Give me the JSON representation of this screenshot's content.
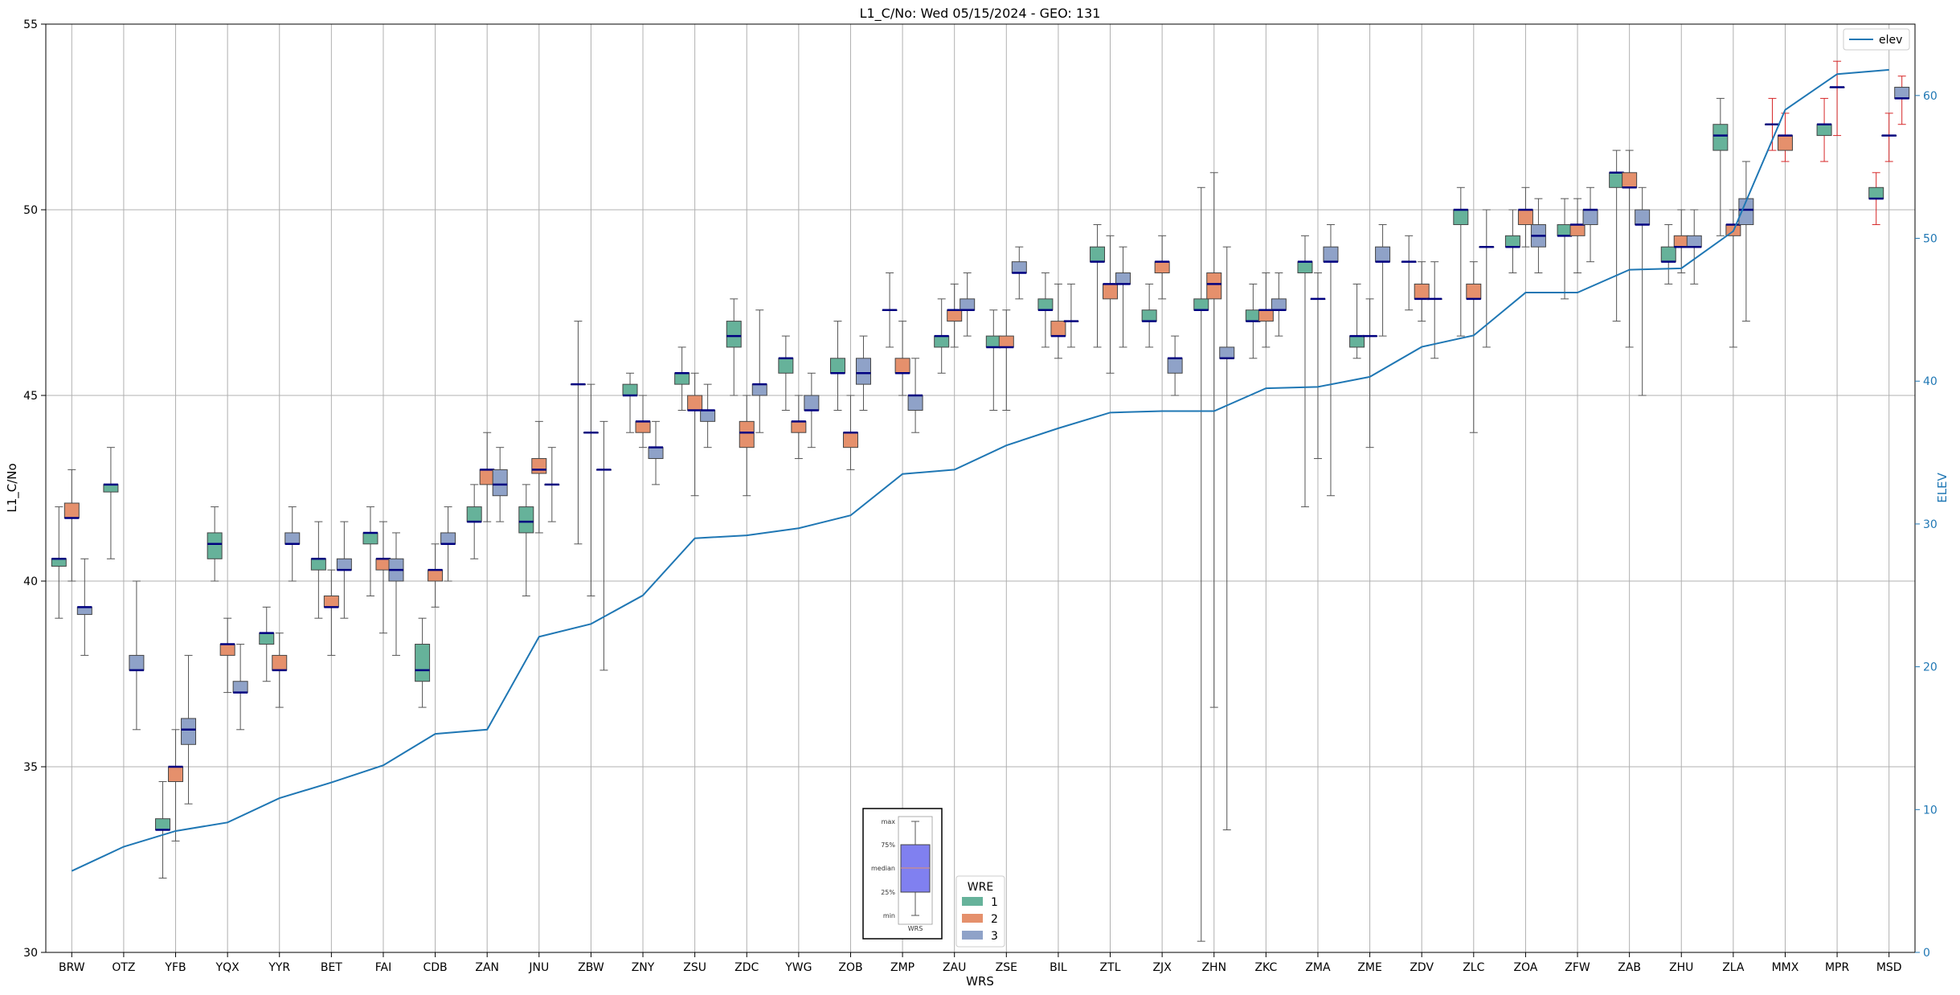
{
  "chart_data": {
    "type": "boxplot",
    "title": "L1_C/No: Wed 05/15/2024 - GEO: 131",
    "xlabel": "WRS",
    "ylabel": "L1_C/No",
    "y2label": "ELEV",
    "ylim": [
      30,
      55
    ],
    "y2lim": [
      0,
      65
    ],
    "yticks": [
      30,
      35,
      40,
      45,
      50,
      55
    ],
    "y2ticks": [
      0,
      10,
      20,
      30,
      40,
      50,
      60
    ],
    "grid": true,
    "categories": [
      "BRW",
      "OTZ",
      "YFB",
      "YQX",
      "YYR",
      "BET",
      "FAI",
      "CDB",
      "ZAN",
      "JNU",
      "ZBW",
      "ZNY",
      "ZSU",
      "ZDC",
      "YWG",
      "ZOB",
      "ZMP",
      "ZAU",
      "ZSE",
      "BIL",
      "ZTL",
      "ZJX",
      "ZHN",
      "ZKC",
      "ZMA",
      "ZME",
      "ZDV",
      "ZLC",
      "ZOA",
      "ZFW",
      "ZAB",
      "ZHU",
      "ZLA",
      "MMX",
      "MPR",
      "MSD"
    ],
    "elev_line": {
      "name": "elev",
      "color": "#1f77b4",
      "values": [
        5.7,
        7.4,
        8.5,
        9.1,
        10.8,
        11.9,
        13.1,
        15.3,
        15.6,
        22.1,
        23.0,
        25.0,
        29.0,
        29.2,
        29.7,
        30.6,
        33.5,
        33.8,
        35.5,
        36.7,
        37.8,
        37.9,
        37.9,
        39.5,
        39.6,
        40.3,
        42.4,
        43.2,
        46.2,
        46.2,
        47.8,
        47.9,
        50.5,
        59.0,
        61.5,
        61.8
      ]
    },
    "legend": {
      "title": "WRE",
      "entries": [
        {
          "name": "1",
          "color": "#66b29a"
        },
        {
          "name": "2",
          "color": "#e5906c"
        },
        {
          "name": "3",
          "color": "#8fa2c8"
        }
      ],
      "line_entry": "elev",
      "line_legend_position": "top-right",
      "wre_legend_position": "bottom-center"
    },
    "key": {
      "labels": [
        "max",
        "75%",
        "median",
        "25%",
        "min"
      ],
      "xlabel": "WRS",
      "color": "#8080f0"
    },
    "boxes": [
      {
        "site": "BRW",
        "wre": 1,
        "min": 39,
        "q1": 40.4,
        "median": 40.6,
        "q3": 40.6,
        "max": 42
      },
      {
        "site": "BRW",
        "wre": 2,
        "min": 40,
        "q1": 41.7,
        "median": 41.7,
        "q3": 42.1,
        "max": 43
      },
      {
        "site": "BRW",
        "wre": 3,
        "min": 38,
        "q1": 39.1,
        "median": 39.3,
        "q3": 39.3,
        "max": 40.6
      },
      {
        "site": "OTZ",
        "wre": 1,
        "min": 40.6,
        "q1": 42.4,
        "median": 42.6,
        "q3": 42.6,
        "max": 43.6
      },
      {
        "site": "OTZ",
        "wre": 3,
        "min": 36,
        "q1": 37.6,
        "median": 37.6,
        "q3": 38,
        "max": 40
      },
      {
        "site": "YFB",
        "wre": 1,
        "min": 32,
        "q1": 33.3,
        "median": 33.3,
        "q3": 33.6,
        "max": 34.6
      },
      {
        "site": "YFB",
        "wre": 2,
        "min": 33,
        "q1": 34.6,
        "median": 35,
        "q3": 35,
        "max": 36
      },
      {
        "site": "YFB",
        "wre": 3,
        "min": 34,
        "q1": 35.6,
        "median": 36,
        "q3": 36.3,
        "max": 38
      },
      {
        "site": "YQX",
        "wre": 1,
        "min": 40,
        "q1": 40.6,
        "median": 41,
        "q3": 41.3,
        "max": 42
      },
      {
        "site": "YQX",
        "wre": 2,
        "min": 37,
        "q1": 38,
        "median": 38.3,
        "q3": 38.3,
        "max": 39
      },
      {
        "site": "YQX",
        "wre": 3,
        "min": 36,
        "q1": 37,
        "median": 37,
        "q3": 37.3,
        "max": 38.3
      },
      {
        "site": "YYR",
        "wre": 1,
        "min": 37.3,
        "q1": 38.3,
        "median": 38.6,
        "q3": 38.6,
        "max": 39.3
      },
      {
        "site": "YYR",
        "wre": 2,
        "min": 36.6,
        "q1": 37.6,
        "median": 37.6,
        "q3": 38,
        "max": 38.6
      },
      {
        "site": "YYR",
        "wre": 3,
        "min": 40,
        "q1": 41,
        "median": 41,
        "q3": 41.3,
        "max": 42
      },
      {
        "site": "BET",
        "wre": 1,
        "min": 39,
        "q1": 40.3,
        "median": 40.6,
        "q3": 40.6,
        "max": 41.6
      },
      {
        "site": "BET",
        "wre": 2,
        "min": 38,
        "q1": 39.3,
        "median": 39.3,
        "q3": 39.6,
        "max": 40.3
      },
      {
        "site": "BET",
        "wre": 3,
        "min": 39,
        "q1": 40.3,
        "median": 40.3,
        "q3": 40.6,
        "max": 41.6
      },
      {
        "site": "FAI",
        "wre": 1,
        "min": 39.6,
        "q1": 41,
        "median": 41.3,
        "q3": 41.3,
        "max": 42
      },
      {
        "site": "FAI",
        "wre": 2,
        "min": 38.6,
        "q1": 40.3,
        "median": 40.6,
        "q3": 40.6,
        "max": 41.6
      },
      {
        "site": "FAI",
        "wre": 3,
        "min": 38,
        "q1": 40,
        "median": 40.3,
        "q3": 40.6,
        "max": 41.3
      },
      {
        "site": "CDB",
        "wre": 1,
        "min": 36.6,
        "q1": 37.3,
        "median": 37.6,
        "q3": 38.3,
        "max": 39
      },
      {
        "site": "CDB",
        "wre": 2,
        "min": 39.3,
        "q1": 40,
        "median": 40.3,
        "q3": 40.3,
        "max": 41
      },
      {
        "site": "CDB",
        "wre": 3,
        "min": 40,
        "q1": 41,
        "median": 41,
        "q3": 41.3,
        "max": 42
      },
      {
        "site": "ZAN",
        "wre": 1,
        "min": 40.6,
        "q1": 41.6,
        "median": 41.6,
        "q3": 42,
        "max": 42.6
      },
      {
        "site": "ZAN",
        "wre": 2,
        "min": 41.6,
        "q1": 42.6,
        "median": 43,
        "q3": 43,
        "max": 44
      },
      {
        "site": "ZAN",
        "wre": 3,
        "min": 41.6,
        "q1": 42.3,
        "median": 42.6,
        "q3": 43,
        "max": 43.6
      },
      {
        "site": "JNU",
        "wre": 1,
        "min": 39.6,
        "q1": 41.3,
        "median": 41.6,
        "q3": 42,
        "max": 42.6
      },
      {
        "site": "JNU",
        "wre": 2,
        "min": 41.3,
        "q1": 42.9,
        "median": 43,
        "q3": 43.3,
        "max": 44.3
      },
      {
        "site": "JNU",
        "wre": 3,
        "min": 41.6,
        "q1": 42.6,
        "median": 42.6,
        "q3": 42.6,
        "max": 43.6
      },
      {
        "site": "ZBW",
        "wre": 1,
        "min": 41,
        "q1": 45.3,
        "median": 45.3,
        "q3": 45.3,
        "max": 47
      },
      {
        "site": "ZBW",
        "wre": 2,
        "min": 39.6,
        "q1": 44,
        "median": 44,
        "q3": 44,
        "max": 45.3
      },
      {
        "site": "ZBW",
        "wre": 3,
        "min": 37.6,
        "q1": 43,
        "median": 43,
        "q3": 43,
        "max": 44.3
      },
      {
        "site": "ZNY",
        "wre": 1,
        "min": 44,
        "q1": 45,
        "median": 45,
        "q3": 45.3,
        "max": 45.6
      },
      {
        "site": "ZNY",
        "wre": 2,
        "min": 43.6,
        "q1": 44,
        "median": 44.3,
        "q3": 44.3,
        "max": 45
      },
      {
        "site": "ZNY",
        "wre": 3,
        "min": 42.6,
        "q1": 43.3,
        "median": 43.6,
        "q3": 43.6,
        "max": 44.3
      },
      {
        "site": "ZSU",
        "wre": 1,
        "min": 44.6,
        "q1": 45.3,
        "median": 45.6,
        "q3": 45.6,
        "max": 46.3
      },
      {
        "site": "ZSU",
        "wre": 2,
        "min": 42.3,
        "q1": 44.6,
        "median": 44.6,
        "q3": 45,
        "max": 45.6
      },
      {
        "site": "ZSU",
        "wre": 3,
        "min": 43.6,
        "q1": 44.3,
        "median": 44.6,
        "q3": 44.6,
        "max": 45.3
      },
      {
        "site": "ZDC",
        "wre": 1,
        "min": 45,
        "q1": 46.3,
        "median": 46.6,
        "q3": 47,
        "max": 47.6
      },
      {
        "site": "ZDC",
        "wre": 2,
        "min": 42.3,
        "q1": 43.6,
        "median": 44,
        "q3": 44.3,
        "max": 45
      },
      {
        "site": "ZDC",
        "wre": 3,
        "min": 44,
        "q1": 45,
        "median": 45.3,
        "q3": 45.3,
        "max": 47.3
      },
      {
        "site": "YWG",
        "wre": 1,
        "min": 44.6,
        "q1": 45.6,
        "median": 46,
        "q3": 46,
        "max": 46.6
      },
      {
        "site": "YWG",
        "wre": 2,
        "min": 43.3,
        "q1": 44,
        "median": 44.3,
        "q3": 44.3,
        "max": 45
      },
      {
        "site": "YWG",
        "wre": 3,
        "min": 43.6,
        "q1": 44.6,
        "median": 44.6,
        "q3": 45,
        "max": 45.6
      },
      {
        "site": "ZOB",
        "wre": 1,
        "min": 44.6,
        "q1": 45.6,
        "median": 45.6,
        "q3": 46,
        "max": 47
      },
      {
        "site": "ZOB",
        "wre": 2,
        "min": 43,
        "q1": 43.6,
        "median": 44,
        "q3": 44,
        "max": 45
      },
      {
        "site": "ZOB",
        "wre": 3,
        "min": 44.6,
        "q1": 45.3,
        "median": 45.6,
        "q3": 46,
        "max": 46.6
      },
      {
        "site": "ZMP",
        "wre": 1,
        "min": 46.3,
        "q1": 47.3,
        "median": 47.3,
        "q3": 47.3,
        "max": 48.3
      },
      {
        "site": "ZMP",
        "wre": 2,
        "min": 45,
        "q1": 45.6,
        "median": 45.6,
        "q3": 46,
        "max": 47
      },
      {
        "site": "ZMP",
        "wre": 3,
        "min": 44,
        "q1": 44.6,
        "median": 45,
        "q3": 45,
        "max": 46
      },
      {
        "site": "ZAU",
        "wre": 1,
        "min": 45.6,
        "q1": 46.3,
        "median": 46.6,
        "q3": 46.6,
        "max": 47.6
      },
      {
        "site": "ZAU",
        "wre": 2,
        "min": 46.3,
        "q1": 47,
        "median": 47.3,
        "q3": 47.3,
        "max": 48
      },
      {
        "site": "ZAU",
        "wre": 3,
        "min": 46.6,
        "q1": 47.3,
        "median": 47.3,
        "q3": 47.6,
        "max": 48.3
      },
      {
        "site": "ZSE",
        "wre": 1,
        "min": 44.6,
        "q1": 46.3,
        "median": 46.3,
        "q3": 46.6,
        "max": 47.3
      },
      {
        "site": "ZSE",
        "wre": 2,
        "min": 44.6,
        "q1": 46.3,
        "median": 46.3,
        "q3": 46.6,
        "max": 47.3
      },
      {
        "site": "ZSE",
        "wre": 3,
        "min": 47.6,
        "q1": 48.3,
        "median": 48.3,
        "q3": 48.6,
        "max": 49
      },
      {
        "site": "BIL",
        "wre": 1,
        "min": 46.3,
        "q1": 47.3,
        "median": 47.3,
        "q3": 47.6,
        "max": 48.3
      },
      {
        "site": "BIL",
        "wre": 2,
        "min": 46,
        "q1": 46.6,
        "median": 46.6,
        "q3": 47,
        "max": 48
      },
      {
        "site": "BIL",
        "wre": 3,
        "min": 46.3,
        "q1": 47,
        "median": 47,
        "q3": 47,
        "max": 48
      },
      {
        "site": "ZTL",
        "wre": 1,
        "min": 46.3,
        "q1": 48.6,
        "median": 48.6,
        "q3": 49,
        "max": 49.6
      },
      {
        "site": "ZTL",
        "wre": 2,
        "min": 45.6,
        "q1": 47.6,
        "median": 48,
        "q3": 48,
        "max": 49.3
      },
      {
        "site": "ZTL",
        "wre": 3,
        "min": 46.3,
        "q1": 48,
        "median": 48,
        "q3": 48.3,
        "max": 49
      },
      {
        "site": "ZJX",
        "wre": 1,
        "min": 46.3,
        "q1": 47,
        "median": 47,
        "q3": 47.3,
        "max": 48
      },
      {
        "site": "ZJX",
        "wre": 2,
        "min": 47.6,
        "q1": 48.3,
        "median": 48.6,
        "q3": 48.6,
        "max": 49.3
      },
      {
        "site": "ZJX",
        "wre": 3,
        "min": 45,
        "q1": 45.6,
        "median": 46,
        "q3": 46,
        "max": 46.6
      },
      {
        "site": "ZHN",
        "wre": 1,
        "min": 30.3,
        "q1": 47.3,
        "median": 47.3,
        "q3": 47.6,
        "max": 50.6
      },
      {
        "site": "ZHN",
        "wre": 2,
        "min": 36.6,
        "q1": 47.6,
        "median": 48,
        "q3": 48.3,
        "max": 51
      },
      {
        "site": "ZHN",
        "wre": 3,
        "min": 33.3,
        "q1": 46,
        "median": 46,
        "q3": 46.3,
        "max": 49
      },
      {
        "site": "ZKC",
        "wre": 1,
        "min": 46,
        "q1": 47,
        "median": 47,
        "q3": 47.3,
        "max": 48
      },
      {
        "site": "ZKC",
        "wre": 2,
        "min": 46.3,
        "q1": 47,
        "median": 47.3,
        "q3": 47.3,
        "max": 48.3
      },
      {
        "site": "ZKC",
        "wre": 3,
        "min": 46.6,
        "q1": 47.3,
        "median": 47.3,
        "q3": 47.6,
        "max": 48.3
      },
      {
        "site": "ZMA",
        "wre": 1,
        "min": 42,
        "q1": 48.3,
        "median": 48.6,
        "q3": 48.6,
        "max": 49.3
      },
      {
        "site": "ZMA",
        "wre": 2,
        "min": 43.3,
        "q1": 47.6,
        "median": 47.6,
        "q3": 47.6,
        "max": 48.3
      },
      {
        "site": "ZMA",
        "wre": 3,
        "min": 42.3,
        "q1": 48.6,
        "median": 48.6,
        "q3": 49,
        "max": 49.6
      },
      {
        "site": "ZME",
        "wre": 1,
        "min": 46,
        "q1": 46.3,
        "median": 46.6,
        "q3": 46.6,
        "max": 48
      },
      {
        "site": "ZME",
        "wre": 2,
        "min": 43.6,
        "q1": 46.6,
        "median": 46.6,
        "q3": 46.6,
        "max": 47.6
      },
      {
        "site": "ZME",
        "wre": 3,
        "min": 46.6,
        "q1": 48.6,
        "median": 48.6,
        "q3": 49,
        "max": 49.6
      },
      {
        "site": "ZDV",
        "wre": 1,
        "min": 47.3,
        "q1": 48.6,
        "median": 48.6,
        "q3": 48.6,
        "max": 49.3
      },
      {
        "site": "ZDV",
        "wre": 2,
        "min": 47,
        "q1": 47.6,
        "median": 47.6,
        "q3": 48,
        "max": 48.6
      },
      {
        "site": "ZDV",
        "wre": 3,
        "min": 46,
        "q1": 47.6,
        "median": 47.6,
        "q3": 47.6,
        "max": 48.6
      },
      {
        "site": "ZLC",
        "wre": 1,
        "min": 46.6,
        "q1": 49.6,
        "median": 50,
        "q3": 50,
        "max": 50.6
      },
      {
        "site": "ZLC",
        "wre": 2,
        "min": 44,
        "q1": 47.6,
        "median": 47.6,
        "q3": 48,
        "max": 48.6
      },
      {
        "site": "ZLC",
        "wre": 3,
        "min": 46.3,
        "q1": 49,
        "median": 49,
        "q3": 49,
        "max": 50
      },
      {
        "site": "ZOA",
        "wre": 1,
        "min": 48.3,
        "q1": 49,
        "median": 49,
        "q3": 49.3,
        "max": 50
      },
      {
        "site": "ZOA",
        "wre": 2,
        "min": 49,
        "q1": 49.6,
        "median": 50,
        "q3": 50,
        "max": 50.6
      },
      {
        "site": "ZOA",
        "wre": 3,
        "min": 48.3,
        "q1": 49,
        "median": 49.3,
        "q3": 49.6,
        "max": 50.3
      },
      {
        "site": "ZFW",
        "wre": 1,
        "min": 47.6,
        "q1": 49.3,
        "median": 49.3,
        "q3": 49.6,
        "max": 50.3
      },
      {
        "site": "ZFW",
        "wre": 2,
        "min": 48.3,
        "q1": 49.3,
        "median": 49.6,
        "q3": 49.6,
        "max": 50.3
      },
      {
        "site": "ZFW",
        "wre": 3,
        "min": 48.6,
        "q1": 49.6,
        "median": 50,
        "q3": 50,
        "max": 50.6
      },
      {
        "site": "ZAB",
        "wre": 1,
        "min": 47,
        "q1": 50.6,
        "median": 51,
        "q3": 51,
        "max": 51.6
      },
      {
        "site": "ZAB",
        "wre": 2,
        "min": 46.3,
        "q1": 50.6,
        "median": 50.6,
        "q3": 51,
        "max": 51.6
      },
      {
        "site": "ZAB",
        "wre": 3,
        "min": 45,
        "q1": 49.6,
        "median": 49.6,
        "q3": 50,
        "max": 50.6
      },
      {
        "site": "ZHU",
        "wre": 1,
        "min": 48,
        "q1": 48.6,
        "median": 48.6,
        "q3": 49,
        "max": 49.6
      },
      {
        "site": "ZHU",
        "wre": 2,
        "min": 48.3,
        "q1": 49,
        "median": 49,
        "q3": 49.3,
        "max": 50
      },
      {
        "site": "ZHU",
        "wre": 3,
        "min": 48,
        "q1": 49,
        "median": 49,
        "q3": 49.3,
        "max": 50
      },
      {
        "site": "ZLA",
        "wre": 1,
        "min": 49.3,
        "q1": 51.6,
        "median": 52,
        "q3": 52.3,
        "max": 53
      },
      {
        "site": "ZLA",
        "wre": 2,
        "min": 46.3,
        "q1": 49.3,
        "median": 49.6,
        "q3": 49.6,
        "max": 50
      },
      {
        "site": "ZLA",
        "wre": 3,
        "min": 47,
        "q1": 49.6,
        "median": 50,
        "q3": 50.3,
        "max": 51.3
      },
      {
        "site": "MMX",
        "wre": 1,
        "min": 51.6,
        "q1": 52.3,
        "median": 52.3,
        "q3": 52.3,
        "max": 53,
        "whisker_color": "#d62728"
      },
      {
        "site": "MMX",
        "wre": 2,
        "min": 51.3,
        "q1": 51.6,
        "median": 52,
        "q3": 52,
        "max": 52.6,
        "whisker_color": "#d62728"
      },
      {
        "site": "MPR",
        "wre": 1,
        "min": 51.3,
        "q1": 52,
        "median": 52.3,
        "q3": 52.3,
        "max": 53,
        "whisker_color": "#d62728"
      },
      {
        "site": "MPR",
        "wre": 2,
        "min": 52,
        "q1": 53.3,
        "median": 53.3,
        "q3": 53.3,
        "max": 54,
        "whisker_color": "#d62728"
      },
      {
        "site": "MSD",
        "wre": 1,
        "min": 49.6,
        "q1": 50.3,
        "median": 50.3,
        "q3": 50.6,
        "max": 51,
        "whisker_color": "#d62728"
      },
      {
        "site": "MSD",
        "wre": 2,
        "min": 51.3,
        "q1": 52,
        "median": 52,
        "q3": 52,
        "max": 52.6,
        "whisker_color": "#d62728"
      },
      {
        "site": "MSD",
        "wre": 3,
        "min": 52.3,
        "q1": 53,
        "median": 53,
        "q3": 53.3,
        "max": 53.6,
        "whisker_color": "#d62728"
      }
    ]
  }
}
